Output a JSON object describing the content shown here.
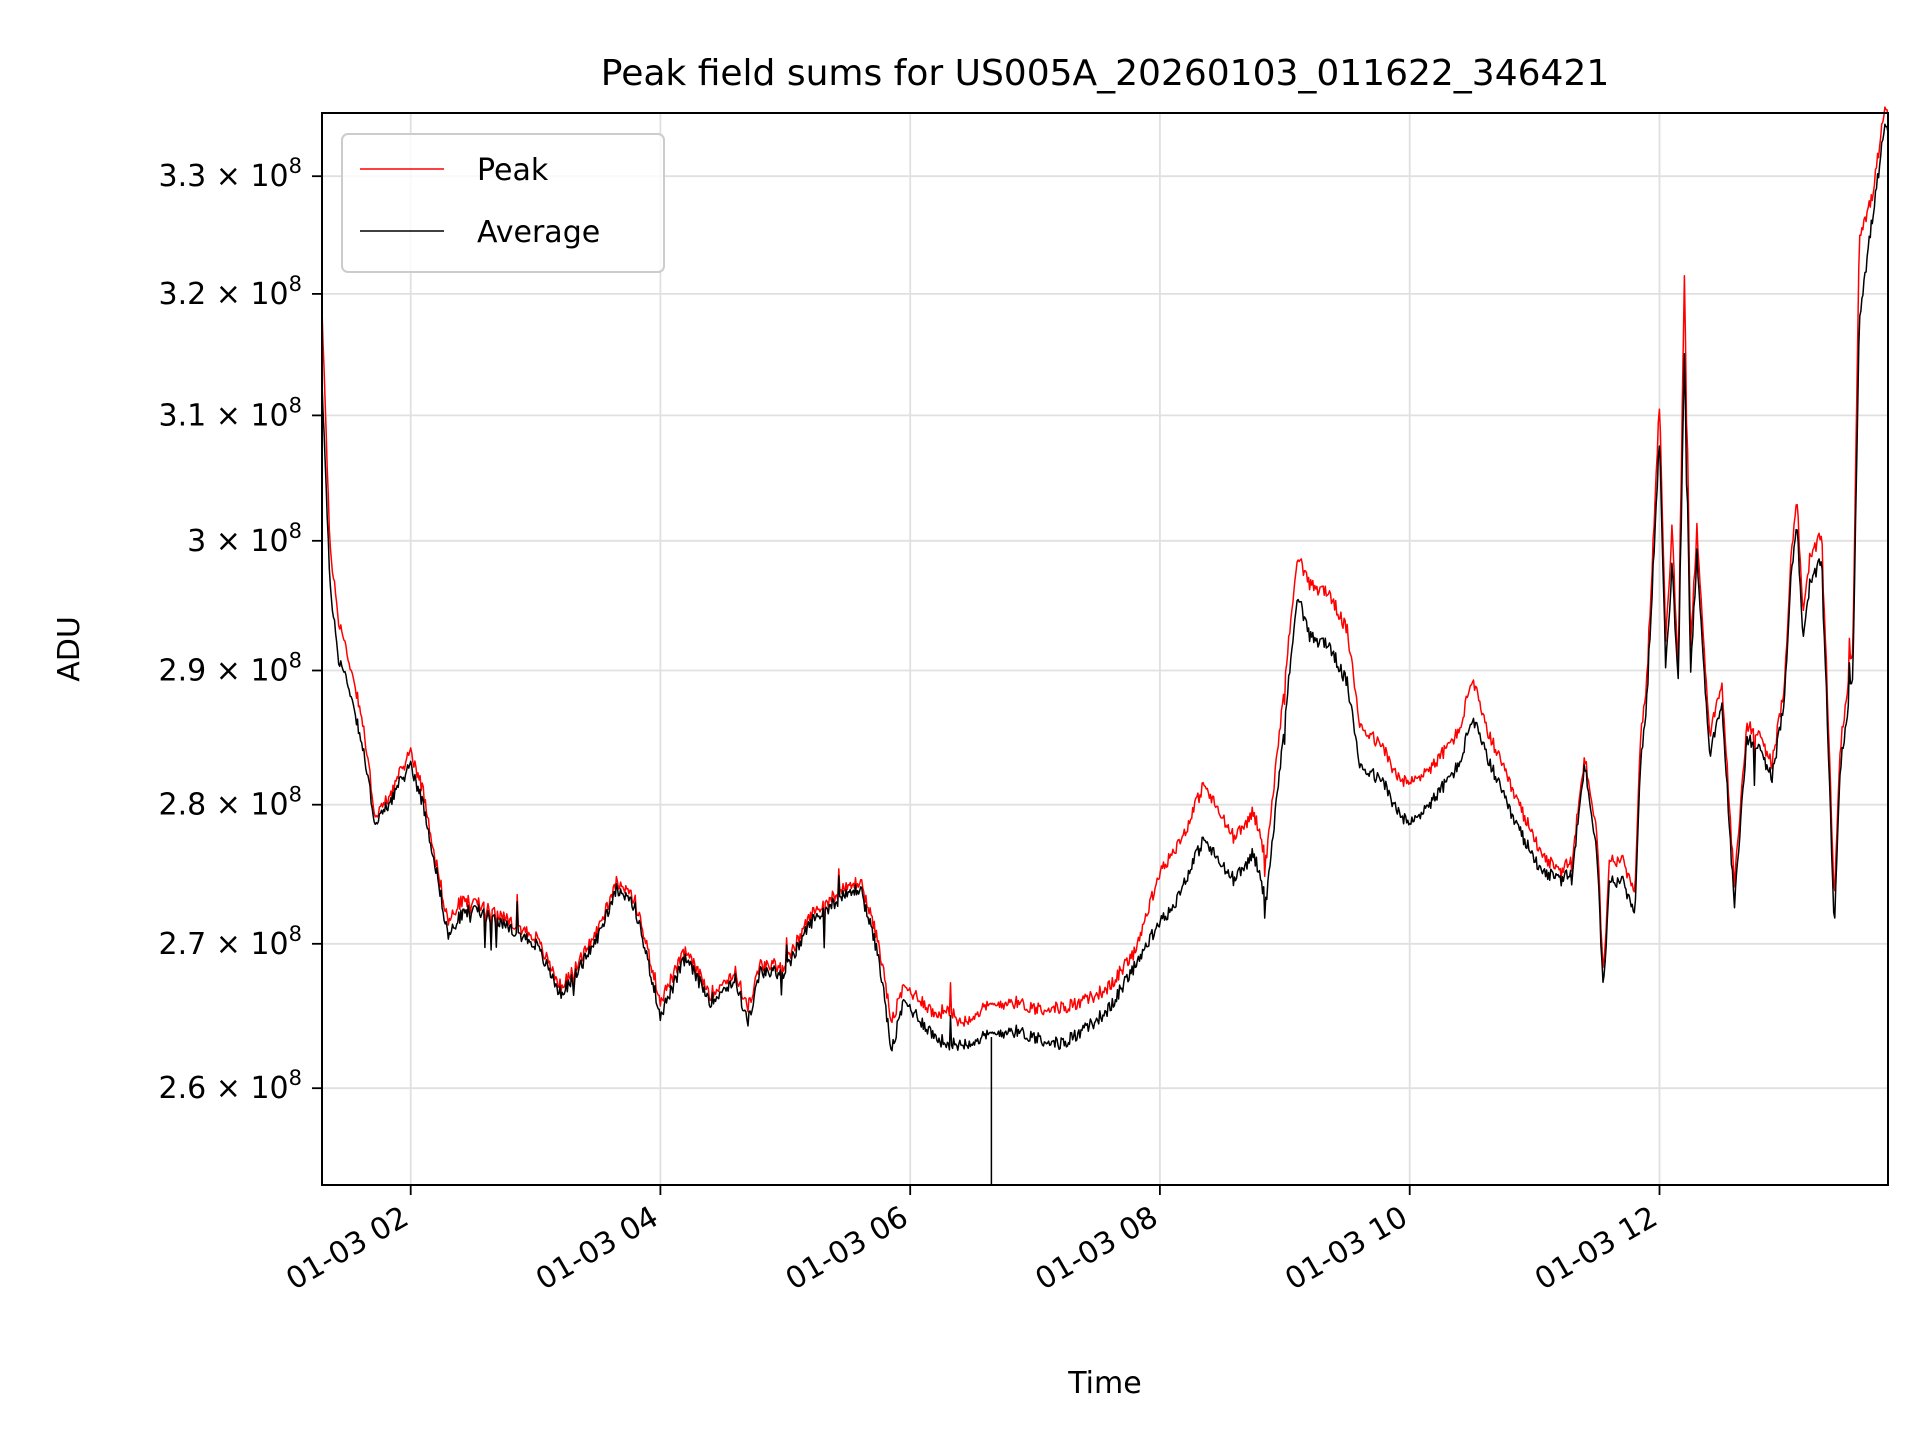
{
  "chart_data": {
    "type": "line",
    "title": "Peak field sums for US005A_20260103_011622_346421",
    "xlabel": "Time",
    "ylabel": "ADU",
    "yscale": "log",
    "grid": true,
    "legend_position": "upper-left",
    "x_unit": "hours since 01-03 00:00",
    "xlim": [
      1.29,
      13.83
    ],
    "ylim": [
      253500000,
      335500000
    ],
    "x_ticks": [
      {
        "value": 2,
        "label": "01-03 02"
      },
      {
        "value": 4,
        "label": "01-03 04"
      },
      {
        "value": 6,
        "label": "01-03 06"
      },
      {
        "value": 8,
        "label": "01-03 08"
      },
      {
        "value": 10,
        "label": "01-03 10"
      },
      {
        "value": 12,
        "label": "01-03 12"
      }
    ],
    "y_ticks": [
      {
        "value": 260000000,
        "label": "2.6 × 10⁸",
        "mant": "2.6 × 10",
        "exp": "8"
      },
      {
        "value": 270000000,
        "label": "2.7 × 10⁸",
        "mant": "2.7 × 10",
        "exp": "8"
      },
      {
        "value": 280000000,
        "label": "2.8 × 10⁸",
        "mant": "2.8 × 10",
        "exp": "8"
      },
      {
        "value": 290000000,
        "label": "2.9 × 10⁸",
        "mant": "2.9 × 10",
        "exp": "8"
      },
      {
        "value": 300000000,
        "label": "3 × 10⁸",
        "mant": "3 × 10",
        "exp": "8"
      },
      {
        "value": 310000000,
        "label": "3.1 × 10⁸",
        "mant": "3.1 × 10",
        "exp": "8"
      },
      {
        "value": 320000000,
        "label": "3.2 × 10⁸",
        "mant": "3.2 × 10",
        "exp": "8"
      },
      {
        "value": 330000000,
        "label": "3.3 × 10⁸",
        "mant": "3.3 × 10",
        "exp": "8"
      }
    ],
    "series": [
      {
        "name": "Peak",
        "color": "#ff0000",
        "x": [
          1.29,
          1.35,
          1.42,
          1.5,
          1.6,
          1.72,
          1.85,
          2.0,
          2.1,
          2.2,
          2.3,
          2.4,
          2.5,
          2.6,
          2.8,
          3.0,
          3.2,
          3.3,
          3.5,
          3.65,
          3.8,
          4.0,
          4.2,
          4.4,
          4.6,
          4.7,
          4.8,
          5.0,
          5.2,
          5.4,
          5.6,
          5.75,
          5.85,
          5.95,
          6.1,
          6.2,
          6.3,
          6.4,
          6.6,
          6.8,
          7.0,
          7.2,
          7.4,
          7.6,
          7.8,
          8.0,
          8.1,
          8.2,
          8.35,
          8.5,
          8.6,
          8.75,
          8.85,
          9.0,
          9.1,
          9.2,
          9.35,
          9.5,
          9.6,
          9.8,
          9.9,
          10.0,
          10.2,
          10.4,
          10.5,
          10.6,
          10.8,
          11.0,
          11.1,
          11.2,
          11.3,
          11.4,
          11.5,
          11.55,
          11.6,
          11.7,
          11.8,
          11.85,
          11.9,
          11.95,
          12.0,
          12.05,
          12.1,
          12.15,
          12.2,
          12.25,
          12.3,
          12.4,
          12.5,
          12.6,
          12.7,
          12.8,
          12.9,
          13.0,
          13.05,
          13.1,
          13.15,
          13.2,
          13.3,
          13.4,
          13.45,
          13.55,
          13.6,
          13.7,
          13.8
        ],
        "values": [
          319000000,
          300000000,
          294000000,
          291000000,
          287000000,
          279000000,
          281000000,
          284000000,
          281000000,
          276000000,
          271500000,
          273000000,
          273000000,
          272500000,
          271500000,
          270500000,
          267000000,
          268000000,
          271000000,
          274500000,
          273000000,
          266000000,
          269500000,
          266500000,
          268000000,
          265500000,
          268500000,
          268500000,
          272000000,
          273500000,
          274500000,
          270000000,
          264500000,
          267000000,
          266000000,
          265000000,
          265500000,
          264500000,
          265500000,
          266000000,
          265500000,
          265500000,
          266000000,
          267000000,
          269500000,
          275000000,
          276500000,
          278000000,
          281500000,
          279000000,
          277500000,
          279500000,
          276000000,
          289000000,
          299000000,
          296500000,
          296000000,
          293000000,
          286000000,
          284000000,
          282000000,
          281500000,
          283000000,
          285500000,
          289500000,
          286000000,
          281500000,
          277500000,
          276000000,
          275000000,
          276000000,
          283500000,
          278000000,
          267500000,
          276000000,
          276000000,
          273500000,
          285000000,
          289500000,
          300000000,
          311000000,
          292000000,
          301000000,
          290000000,
          321500000,
          292000000,
          301000000,
          285000000,
          289000000,
          274000000,
          286000000,
          285000000,
          283000000,
          288500000,
          298500000,
          303500000,
          294000000,
          298500000,
          300500000,
          273000000,
          284500000,
          292000000,
          325000000,
          328000000,
          335500000
        ]
      },
      {
        "name": "Average",
        "color": "#000000",
        "x": [
          1.29,
          1.35,
          1.42,
          1.5,
          1.6,
          1.72,
          1.85,
          2.0,
          2.1,
          2.2,
          2.3,
          2.4,
          2.5,
          2.6,
          2.8,
          3.0,
          3.2,
          3.3,
          3.5,
          3.65,
          3.8,
          4.0,
          4.2,
          4.4,
          4.6,
          4.7,
          4.8,
          5.0,
          5.2,
          5.4,
          5.6,
          5.75,
          5.85,
          5.95,
          6.1,
          6.2,
          6.3,
          6.4,
          6.6,
          6.8,
          7.0,
          7.2,
          7.4,
          7.6,
          7.8,
          8.0,
          8.1,
          8.2,
          8.35,
          8.5,
          8.6,
          8.75,
          8.85,
          9.0,
          9.1,
          9.2,
          9.35,
          9.5,
          9.6,
          9.8,
          9.9,
          10.0,
          10.2,
          10.4,
          10.5,
          10.6,
          10.8,
          11.0,
          11.1,
          11.2,
          11.3,
          11.4,
          11.5,
          11.55,
          11.6,
          11.7,
          11.8,
          11.85,
          11.9,
          11.95,
          12.0,
          12.05,
          12.1,
          12.15,
          12.2,
          12.25,
          12.3,
          12.4,
          12.5,
          12.6,
          12.7,
          12.8,
          12.9,
          13.0,
          13.05,
          13.1,
          13.15,
          13.2,
          13.3,
          13.4,
          13.45,
          13.55,
          13.6,
          13.7,
          13.8
        ],
        "values": [
          313000000,
          297000000,
          291000000,
          289000000,
          285000000,
          278500000,
          280500000,
          283000000,
          280000000,
          275500000,
          270500000,
          272000000,
          272500000,
          272000000,
          271000000,
          270000000,
          266500000,
          267500000,
          270500000,
          274000000,
          272500000,
          265000000,
          269000000,
          266000000,
          267500000,
          264500000,
          268000000,
          268000000,
          271500000,
          273000000,
          274000000,
          269000000,
          262500000,
          266000000,
          264500000,
          263500000,
          263000000,
          263000000,
          263500000,
          264000000,
          263500000,
          263000000,
          264000000,
          265500000,
          268500000,
          271500000,
          272500000,
          274500000,
          277500000,
          275500000,
          274500000,
          276500000,
          273000000,
          286000000,
          296000000,
          292500000,
          292000000,
          289000000,
          283000000,
          281500000,
          279500000,
          278500000,
          280500000,
          283000000,
          286500000,
          284000000,
          279500000,
          276000000,
          275000000,
          274500000,
          275000000,
          283000000,
          276500000,
          266500000,
          274500000,
          274500000,
          272000000,
          283000000,
          288000000,
          298000000,
          308000000,
          290000000,
          298000000,
          289000000,
          315000000,
          290000000,
          299000000,
          283500000,
          287500000,
          272500000,
          285000000,
          284000000,
          282000000,
          287500000,
          297000000,
          301500000,
          292000000,
          296500000,
          298500000,
          271000000,
          283000000,
          290000000,
          318000000,
          326000000,
          334000000
        ]
      }
    ]
  }
}
